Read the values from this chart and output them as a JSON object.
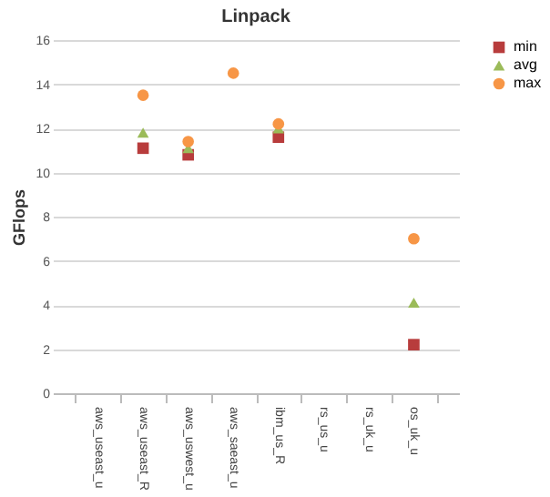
{
  "chart_data": {
    "type": "scatter",
    "title": "Linpack",
    "ylabel": "GFlops",
    "categories": [
      "aws_useast_u",
      "aws_useast_R",
      "aws_uswest_u",
      "aws_saeast_u",
      "ibm_us_R",
      "rs_us_u",
      "rs_uk_u",
      "os_uk_u"
    ],
    "series": [
      {
        "name": "min",
        "color": "#b83c3c",
        "marker": "square",
        "values": [
          null,
          11.1,
          10.8,
          null,
          11.6,
          null,
          null,
          2.2
        ]
      },
      {
        "name": "avg",
        "color": "#9bbb59",
        "marker": "triangle",
        "values": [
          null,
          11.8,
          11.1,
          null,
          12.0,
          null,
          null,
          4.1
        ]
      },
      {
        "name": "max",
        "color": "#f79646",
        "marker": "circle",
        "values": [
          null,
          13.5,
          11.4,
          14.5,
          12.2,
          null,
          null,
          7.0
        ]
      }
    ],
    "ylim": [
      0,
      16
    ],
    "yticks": [
      0,
      2,
      4,
      6,
      8,
      10,
      12,
      14,
      16
    ],
    "grid": "y",
    "legend": "right"
  }
}
